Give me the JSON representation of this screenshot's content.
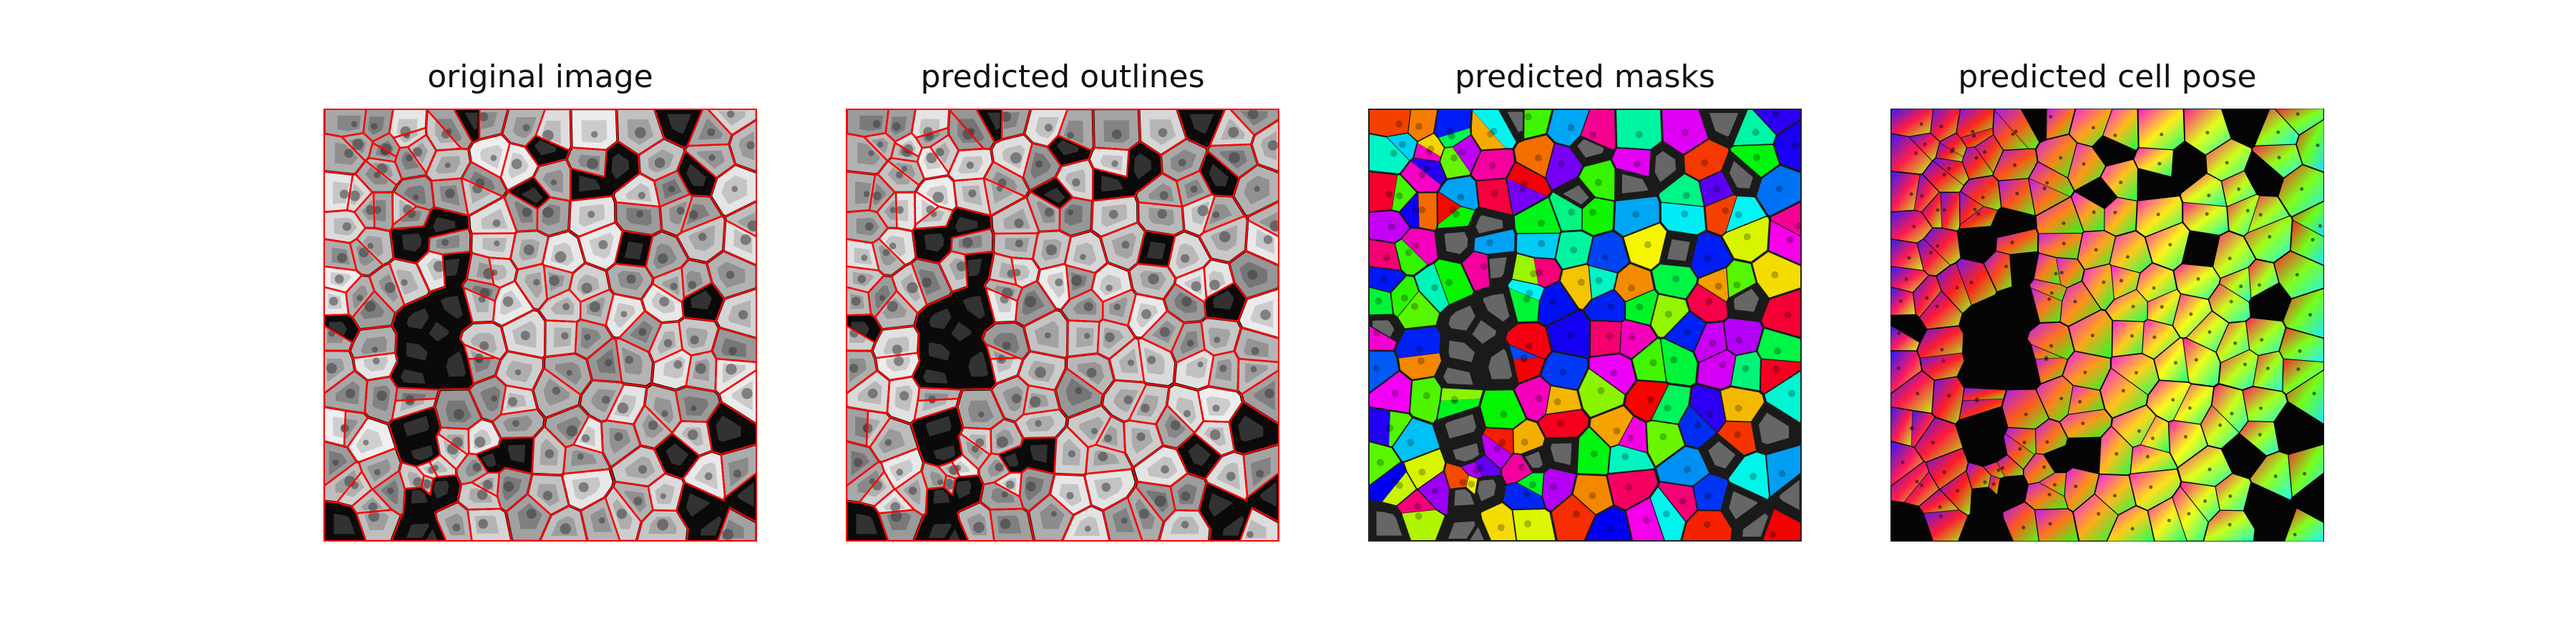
{
  "figure": {
    "panels": [
      {
        "id": "original",
        "title": "original image",
        "kind": "image-with-outlines"
      },
      {
        "id": "outlines",
        "title": "predicted outlines",
        "kind": "image-with-outlines"
      },
      {
        "id": "masks",
        "title": "predicted masks",
        "kind": "colored-masks"
      },
      {
        "id": "cellpose",
        "title": "predicted cell pose",
        "kind": "flow-field"
      }
    ],
    "colors": {
      "outline": "#ff0000",
      "background": "#ffffff",
      "gap": "#0a0a0a"
    }
  }
}
